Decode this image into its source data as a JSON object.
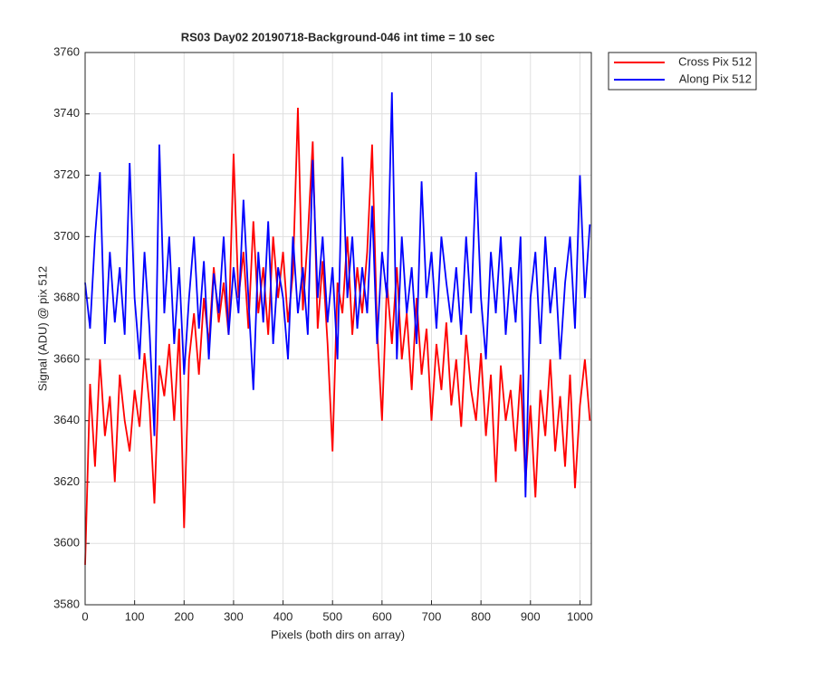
{
  "chart_data": {
    "type": "line",
    "title": "RS03 Day02 20190718-Background-046 int time = 10 sec",
    "x_label": "Pixels (both dirs on array)",
    "y_label": "Signal (ADU) @ pix 512",
    "x": [
      0,
      10,
      20,
      30,
      40,
      50,
      60,
      70,
      80,
      90,
      100,
      110,
      120,
      130,
      140,
      150,
      160,
      170,
      180,
      190,
      200,
      210,
      220,
      230,
      240,
      250,
      260,
      270,
      280,
      290,
      300,
      310,
      320,
      330,
      340,
      350,
      360,
      370,
      380,
      390,
      400,
      410,
      420,
      430,
      440,
      450,
      460,
      470,
      480,
      490,
      500,
      510,
      520,
      530,
      540,
      550,
      560,
      570,
      580,
      590,
      600,
      610,
      620,
      630,
      640,
      650,
      660,
      670,
      680,
      690,
      700,
      710,
      720,
      730,
      740,
      750,
      760,
      770,
      780,
      790,
      800,
      810,
      820,
      830,
      840,
      850,
      860,
      870,
      880,
      890,
      900,
      910,
      920,
      930,
      940,
      950,
      960,
      970,
      980,
      990,
      1000,
      1010,
      1020
    ],
    "series": [
      {
        "name": "Cross Pix 512",
        "color": "#ff0000",
        "values": [
          3593,
          3652,
          3625,
          3660,
          3635,
          3648,
          3620,
          3655,
          3640,
          3630,
          3650,
          3638,
          3662,
          3645,
          3613,
          3658,
          3648,
          3665,
          3640,
          3670,
          3605,
          3660,
          3675,
          3655,
          3680,
          3665,
          3690,
          3672,
          3685,
          3668,
          3727,
          3680,
          3695,
          3670,
          3705,
          3675,
          3690,
          3668,
          3700,
          3680,
          3695,
          3672,
          3688,
          3742,
          3676,
          3700,
          3731,
          3670,
          3692,
          3665,
          3630,
          3685,
          3675,
          3700,
          3668,
          3690,
          3675,
          3695,
          3730,
          3670,
          3640,
          3685,
          3665,
          3690,
          3660,
          3675,
          3650,
          3680,
          3655,
          3670,
          3640,
          3665,
          3650,
          3672,
          3645,
          3660,
          3638,
          3668,
          3650,
          3640,
          3662,
          3635,
          3655,
          3620,
          3658,
          3640,
          3650,
          3630,
          3655,
          3620,
          3645,
          3615,
          3650,
          3635,
          3660,
          3630,
          3648,
          3625,
          3655,
          3618,
          3645,
          3660,
          3640
        ]
      },
      {
        "name": "Along Pix 512",
        "color": "#0000ff",
        "values": [
          3685,
          3670,
          3700,
          3721,
          3665,
          3695,
          3672,
          3690,
          3668,
          3724,
          3680,
          3660,
          3695,
          3670,
          3635,
          3730,
          3675,
          3700,
          3665,
          3690,
          3655,
          3680,
          3700,
          3670,
          3692,
          3660,
          3688,
          3675,
          3700,
          3668,
          3690,
          3675,
          3712,
          3680,
          3650,
          3695,
          3672,
          3705,
          3665,
          3690,
          3680,
          3660,
          3700,
          3675,
          3690,
          3668,
          3725,
          3680,
          3700,
          3672,
          3690,
          3660,
          3726,
          3680,
          3700,
          3670,
          3690,
          3675,
          3710,
          3665,
          3695,
          3680,
          3747,
          3660,
          3700,
          3675,
          3690,
          3665,
          3718,
          3680,
          3695,
          3670,
          3700,
          3685,
          3672,
          3690,
          3668,
          3700,
          3675,
          3721,
          3680,
          3660,
          3695,
          3675,
          3700,
          3668,
          3690,
          3672,
          3700,
          3615,
          3680,
          3695,
          3665,
          3700,
          3675,
          3690,
          3660,
          3685,
          3700,
          3670,
          3720,
          3680,
          3704
        ]
      }
    ],
    "xlim": [
      0,
      1023
    ],
    "ylim": [
      3580,
      3760
    ],
    "xticks": [
      0,
      100,
      200,
      300,
      400,
      500,
      600,
      700,
      800,
      900,
      1000
    ],
    "yticks": [
      3580,
      3600,
      3620,
      3640,
      3660,
      3680,
      3700,
      3720,
      3740,
      3760
    ],
    "grid": true,
    "legend": "outside-top-right"
  }
}
